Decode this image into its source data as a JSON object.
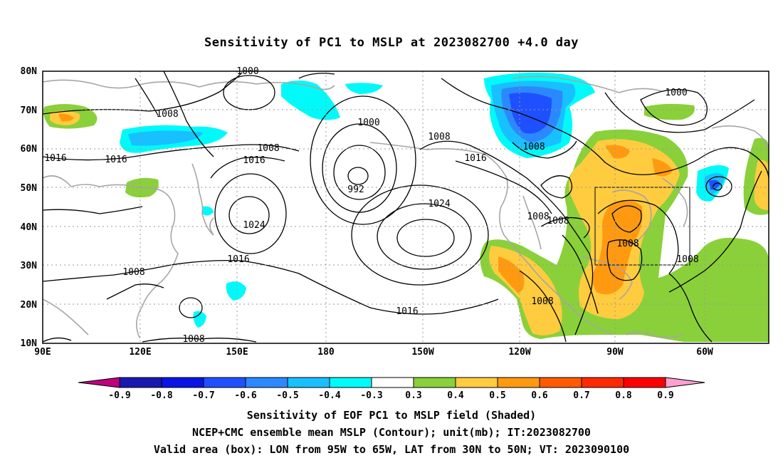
{
  "title": "Sensitivity of PC1 to MSLP at 2023082700 +4.0 day",
  "lat_labels": [
    "80N",
    "70N",
    "60N",
    "50N",
    "40N",
    "30N",
    "20N",
    "10N"
  ],
  "lon_labels": [
    "90E",
    "120E",
    "150E",
    "180",
    "150W",
    "120W",
    "90W",
    "60W"
  ],
  "contour_labels": [
    "1000",
    "1008",
    "1016",
    "1016",
    "1008",
    "1016",
    "1024",
    "992",
    "1000",
    "1008",
    "1016",
    "1024",
    "1016",
    "1008",
    "1008",
    "1000",
    "1008",
    "1008",
    "1008",
    "1008",
    "1008",
    "1016",
    "1008"
  ],
  "colorbar": {
    "ticks": [
      "-0.9",
      "-0.8",
      "-0.7",
      "-0.6",
      "-0.5",
      "-0.4",
      "-0.3",
      "0.3",
      "0.4",
      "0.5",
      "0.6",
      "0.7",
      "0.8",
      "0.9"
    ],
    "colors": [
      "#c0007f",
      "#1a1ab0",
      "#0a14e6",
      "#1e50ff",
      "#2c88ff",
      "#18c0ff",
      "#00fafa",
      "#ffffff",
      "#8ad03a",
      "#ffcc40",
      "#ff9a10",
      "#ff5a00",
      "#ff2a00",
      "#ff0000",
      "#ffa0d0"
    ]
  },
  "captions": [
    "Sensitivity of EOF PC1 to MSLP field (Shaded)",
    "NCEP+CMC ensemble mean MSLP (Contour); unit(mb); IT:2023082700",
    "Valid area (box): LON from 95W to 65W, LAT from 30N to 50N; VT: 2023090100"
  ]
}
